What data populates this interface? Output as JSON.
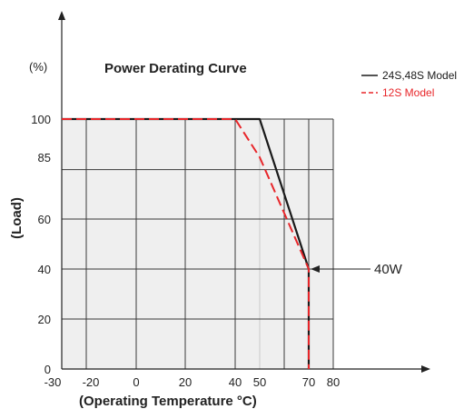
{
  "chart_data": {
    "type": "line",
    "title": "Power Derating Curve",
    "ylabel": "(Load)",
    "xlabel": "(Operating Temperature ",
    "xlabel_unit": "°C)",
    "y_unit_label": "(%)",
    "xlim": [
      -30,
      80
    ],
    "ylim": [
      0,
      100
    ],
    "x_ticks": [
      "-30",
      "-20",
      "0",
      "20",
      "40",
      "50",
      "70",
      "80"
    ],
    "y_ticks": [
      "0",
      "20",
      "40",
      "60",
      "85",
      "100"
    ],
    "series": [
      {
        "name": "24S,48S Model",
        "color": "#1a1a1a",
        "dash": "solid",
        "points": [
          [
            -30,
            100
          ],
          [
            50,
            100
          ],
          [
            70,
            40
          ],
          [
            70,
            0
          ]
        ]
      },
      {
        "name": "12S Model",
        "color": "#e8262a",
        "dash": "dashed",
        "points": [
          [
            -30,
            100
          ],
          [
            40,
            100
          ],
          [
            50,
            85
          ],
          [
            70,
            40
          ],
          [
            70,
            0
          ]
        ]
      }
    ],
    "annotations": [
      {
        "text": "40W",
        "x": 70,
        "y": 40
      }
    ]
  }
}
